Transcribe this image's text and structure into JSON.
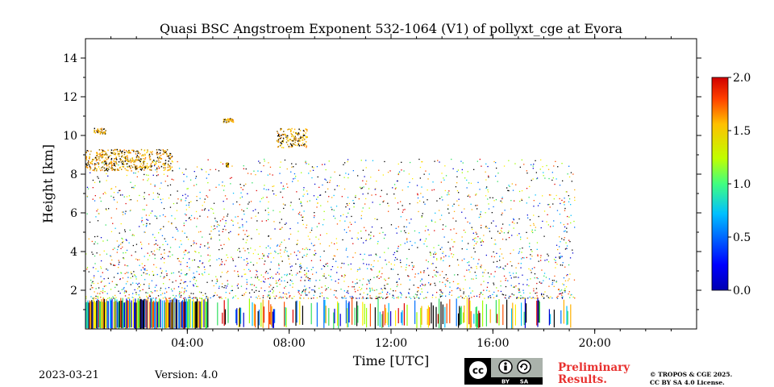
{
  "chart_data": {
    "type": "heatmap",
    "title": "Quasi BSC Angstroem Exponent 532-1064 (V1) of pollyxt_cge at Evora",
    "xlabel": "Time [UTC]",
    "ylabel": "Height [km]",
    "xlim_hours": [
      0,
      24
    ],
    "ylim_km": [
      0,
      15
    ],
    "x_ticks": [
      {
        "hour": 4,
        "label": "04:00"
      },
      {
        "hour": 8,
        "label": "08:00"
      },
      {
        "hour": 12,
        "label": "12:00"
      },
      {
        "hour": 16,
        "label": "16:00"
      },
      {
        "hour": 20,
        "label": "20:00"
      }
    ],
    "y_ticks": [
      {
        "km": 2,
        "label": "2"
      },
      {
        "km": 4,
        "label": "4"
      },
      {
        "km": 6,
        "label": "6"
      },
      {
        "km": 8,
        "label": "8"
      },
      {
        "km": 10,
        "label": "10"
      },
      {
        "km": 12,
        "label": "12"
      },
      {
        "km": 14,
        "label": "14"
      }
    ],
    "colorbar": {
      "min": 0.0,
      "max": 2.0,
      "colormap": "jet",
      "ticks": [
        {
          "value": 0.0,
          "label": "0.0"
        },
        {
          "value": 0.5,
          "label": "0.5"
        },
        {
          "value": 1.0,
          "label": "1.0"
        },
        {
          "value": 1.5,
          "label": "1.5"
        },
        {
          "value": 2.0,
          "label": "2.0"
        }
      ]
    },
    "measurement_end_hour": 19.2,
    "features": [
      {
        "name": "noisy-boundary-layer",
        "t_start": 0.0,
        "t_end": 19.2,
        "h_start": 0.0,
        "h_end": 1.6
      },
      {
        "name": "scattered-noise",
        "t_start": 0.0,
        "t_end": 19.2,
        "h_start": 1.6,
        "h_end": 8.8
      },
      {
        "name": "cirrus-layer-1",
        "t_start": 0.0,
        "t_end": 3.4,
        "h_start": 8.2,
        "h_end": 9.3
      },
      {
        "name": "cirrus-layer-2",
        "t_start": 0.3,
        "t_end": 0.8,
        "h_start": 10.1,
        "h_end": 10.4
      },
      {
        "name": "cloud-patch-1",
        "t_start": 5.4,
        "t_end": 5.8,
        "h_start": 10.7,
        "h_end": 10.9
      },
      {
        "name": "cloud-patch-2",
        "t_start": 5.5,
        "t_end": 5.6,
        "h_start": 8.4,
        "h_end": 8.6
      },
      {
        "name": "cloud-patch-3",
        "t_start": 7.5,
        "t_end": 8.7,
        "h_start": 9.4,
        "h_end": 10.4
      }
    ]
  },
  "footer": {
    "date": "2023-03-21",
    "version": "Version: 4.0",
    "cc_label": "cc",
    "cc_by": "BY",
    "cc_sa": "SA",
    "preliminary_line1": "Preliminary",
    "preliminary_line2": "Results.",
    "copyright_line1": "© TROPOS & CGE 2025.",
    "copyright_line2": "CC BY SA 4.0 License."
  }
}
